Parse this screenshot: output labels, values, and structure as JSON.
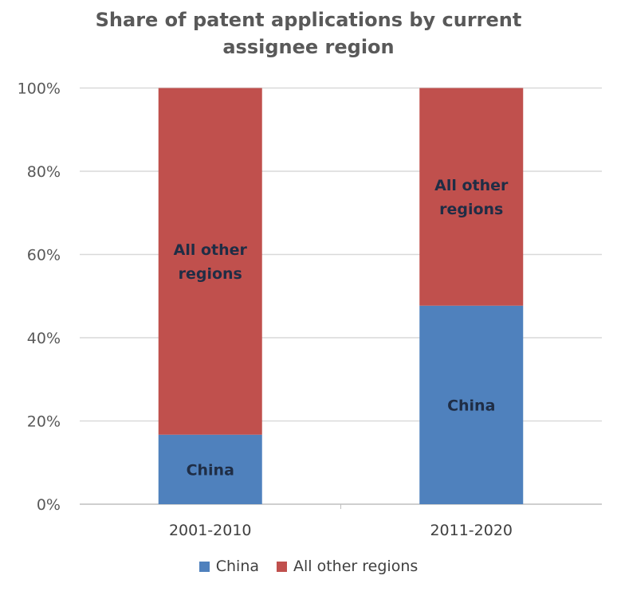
{
  "chart_data": {
    "type": "bar",
    "stacked": true,
    "title": "Share of patent applications by current assignee region",
    "title_lines": [
      "Share of patent applications by current",
      "assignee region"
    ],
    "categories": [
      "2001-2010",
      "2011-2020"
    ],
    "series": [
      {
        "name": "China",
        "values": [
          16.7,
          47.7
        ],
        "color": "#4F81BD",
        "label": "China"
      },
      {
        "name": "All other regions",
        "values": [
          83.3,
          52.3
        ],
        "color": "#C0504D",
        "label": "All other regions"
      }
    ],
    "ylim": [
      0,
      100
    ],
    "yticks": [
      "0%",
      "20%",
      "40%",
      "60%",
      "80%",
      "100%"
    ],
    "xlabel": "",
    "ylabel": "",
    "grid": true,
    "legend_position": "bottom"
  }
}
